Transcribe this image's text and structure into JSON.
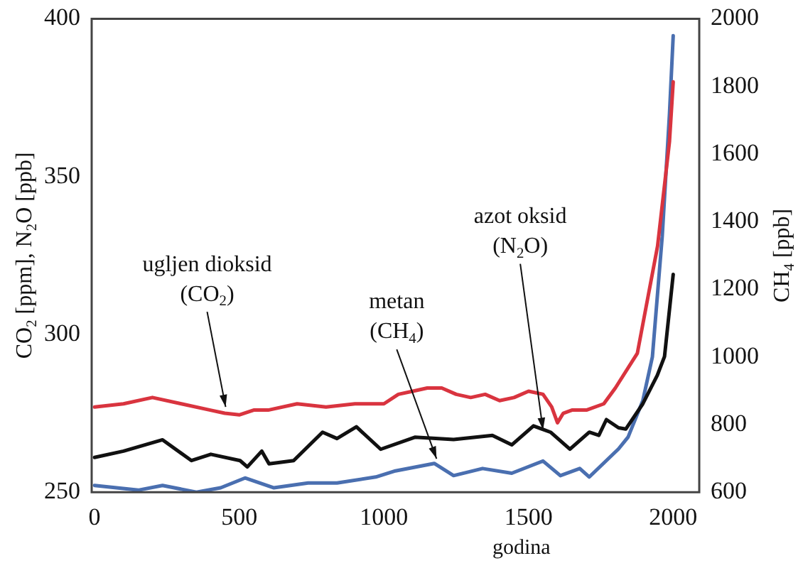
{
  "chart_data": {
    "type": "line",
    "xlabel": "godina",
    "ylabel": "CO$_{2}$ [ppm], N$_{2}$O [ppb]",
    "y2label": "CH$_{4}$ [ppb]",
    "xlim": [
      -10,
      2090
    ],
    "xticks": [
      0,
      500,
      1000,
      1500,
      2000
    ],
    "ylim": [
      250,
      400
    ],
    "yticks": [
      250,
      300,
      350,
      400
    ],
    "y2lim": [
      600,
      2000
    ],
    "y2ticks": [
      600,
      800,
      1000,
      1200,
      1400,
      1600,
      1800,
      2000
    ],
    "grid": false,
    "legend": false,
    "marker": "none",
    "line_style": "solid",
    "series": [
      {
        "color": "#d9343f",
        "x": [
          0,
          100,
          200,
          300,
          400,
          450,
          500,
          550,
          600,
          700,
          800,
          900,
          1000,
          1050,
          1100,
          1150,
          1200,
          1250,
          1300,
          1350,
          1400,
          1450,
          1500,
          1550,
          1580,
          1600,
          1620,
          1650,
          1700,
          1760,
          1800,
          1876,
          1946,
          1987,
          2000
        ],
        "values": [
          277,
          278,
          280,
          278,
          276,
          275,
          274.5,
          276,
          276,
          278,
          277,
          278,
          278,
          281,
          282,
          283,
          283,
          281,
          280,
          281,
          279,
          280,
          282,
          281,
          277,
          272,
          275,
          276,
          276,
          278,
          283,
          294,
          328,
          361,
          380
        ]
      },
      {
        "color": "#111111",
        "x": [
          0,
          100,
          235,
          335,
          402,
          503,
          528,
          578,
          603,
          688,
          788,
          838,
          905,
          989,
          1107,
          1241,
          1375,
          1442,
          1517,
          1576,
          1643,
          1710,
          1743,
          1769,
          1811,
          1836,
          1895,
          1945,
          1970,
          2000
        ],
        "values": [
          261,
          263,
          266.6,
          260,
          262,
          260,
          258,
          263,
          259,
          260,
          269,
          267,
          270.7,
          263.6,
          267.4,
          266.7,
          268,
          265,
          271,
          269,
          263.6,
          269,
          268,
          273,
          270.4,
          270,
          278,
          287,
          293,
          319
        ]
      },
      {
        "color": "#4a6fb0",
        "axis": "y2",
        "x": [
          0,
          151,
          235,
          352,
          436,
          520,
          620,
          738,
          838,
          972,
          1040,
          1174,
          1241,
          1341,
          1442,
          1550,
          1610,
          1677,
          1710,
          1811,
          1844,
          1895,
          1928,
          1962,
          1987,
          2000
        ],
        "values": [
          620,
          606,
          620,
          600,
          613,
          642,
          613,
          627,
          627,
          645,
          663,
          685,
          649,
          670,
          656,
          692,
          649,
          670,
          645,
          728,
          763,
          871,
          1000,
          1356,
          1717,
          1950
        ]
      }
    ],
    "annotations": [
      {
        "text": "ugljen dioksid\n(CO$_{2}$)",
        "x": 453,
        "y": 277
      },
      {
        "text": "metan\n(CH$_{4}$)",
        "x": 1182,
        "y": 260.6
      },
      {
        "text": "azot oksid\n(N$_{2}$O)",
        "x": 1550,
        "y": 269.7
      }
    ]
  }
}
